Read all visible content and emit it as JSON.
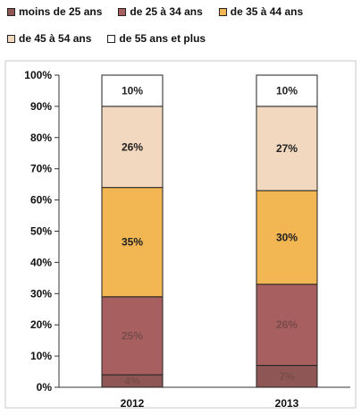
{
  "chart_data": {
    "type": "bar",
    "stacked": true,
    "percent": true,
    "categories": [
      "2012",
      "2013"
    ],
    "series": [
      {
        "name": "moins de 25 ans",
        "values": [
          4,
          7
        ],
        "labels": [
          "4%",
          "7%"
        ],
        "color": "#8f5656"
      },
      {
        "name": "de 25 à 34 ans",
        "values": [
          25,
          26
        ],
        "labels": [
          "25%",
          "26%"
        ],
        "color": "#a85f5f"
      },
      {
        "name": "de 35 à 44 ans",
        "values": [
          35,
          30
        ],
        "labels": [
          "35%",
          "30%"
        ],
        "color": "#f2b652"
      },
      {
        "name": "de 45 à 54 ans",
        "values": [
          26,
          27
        ],
        "labels": [
          "26%",
          "27%"
        ],
        "color": "#f2d8bf"
      },
      {
        "name": "de 55 ans et plus",
        "values": [
          10,
          10
        ],
        "labels": [
          "10%",
          "10%"
        ],
        "color": "#ffffff"
      }
    ],
    "y_ticks": [
      "0%",
      "10%",
      "20%",
      "30%",
      "40%",
      "50%",
      "60%",
      "70%",
      "80%",
      "90%",
      "100%"
    ],
    "ylim": [
      0,
      100
    ],
    "legend_position": "top",
    "grid": false
  },
  "colors": {
    "axis": "#333333",
    "bar_stroke": "#222222",
    "plot_border": "#999999"
  }
}
